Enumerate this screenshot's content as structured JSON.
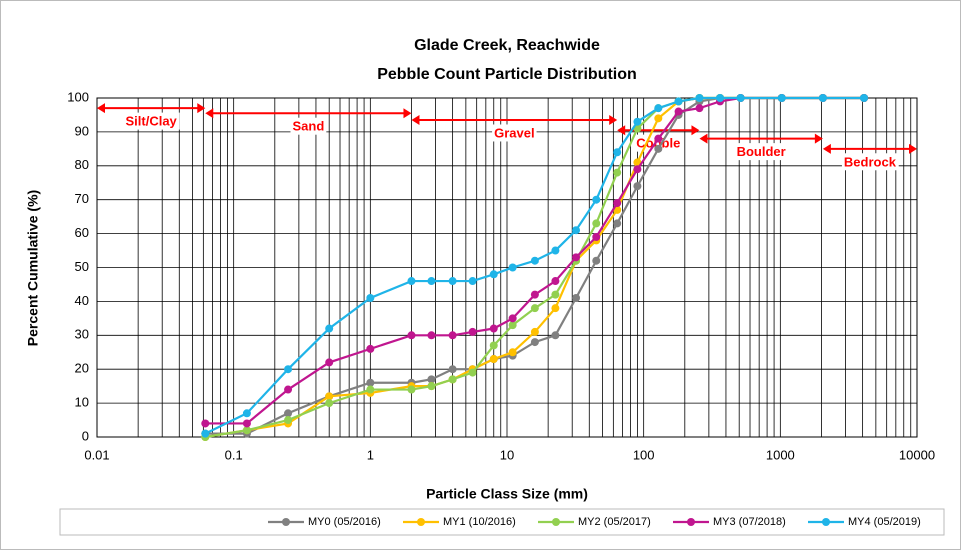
{
  "chart_data": {
    "type": "line",
    "title": "Glade Creek, Reachwide",
    "subtitle": "Pebble Count Particle Distribution",
    "xlabel": "Particle Class Size (mm)",
    "ylabel": "Percent Cumulative (%)",
    "x_log": true,
    "grid": true,
    "minor_grid": true,
    "x": [
      0.062,
      0.125,
      0.25,
      0.5,
      1,
      2,
      2.8,
      4,
      5.6,
      8,
      11,
      16,
      22.6,
      32,
      45,
      64,
      90,
      128,
      180,
      256,
      362,
      512,
      1024,
      2048,
      4096
    ],
    "series": [
      {
        "name": "MY0 (05/2016)",
        "color": "#808080",
        "values": [
          1,
          1,
          7,
          12,
          16,
          16,
          17,
          20,
          20,
          23,
          24,
          28,
          30,
          41,
          52,
          63,
          74,
          85,
          95,
          99,
          100,
          100,
          100,
          100,
          100
        ]
      },
      {
        "name": "MY1 (10/2016)",
        "color": "#ffc000",
        "values": [
          0,
          2,
          4,
          12,
          13,
          15,
          15,
          17,
          20,
          23,
          25,
          31,
          38,
          52,
          58,
          67,
          81,
          94,
          99,
          100,
          100,
          100,
          100,
          100,
          100
        ]
      },
      {
        "name": "MY2 (05/2017)",
        "color": "#92d050",
        "values": [
          0,
          2,
          5,
          10,
          14,
          14,
          15,
          17,
          19,
          27,
          33,
          38,
          42,
          52,
          63,
          78,
          91,
          97,
          99,
          100,
          100,
          100,
          100,
          100,
          100
        ]
      },
      {
        "name": "MY3 (07/2018)",
        "color": "#c0168f",
        "values": [
          4,
          4,
          14,
          22,
          26,
          30,
          30,
          30,
          31,
          32,
          35,
          42,
          46,
          53,
          59,
          69,
          79,
          88,
          96,
          97,
          99,
          100,
          100,
          100,
          100
        ]
      },
      {
        "name": "MY4 (05/2019)",
        "color": "#1fb4e8",
        "values": [
          1,
          7,
          20,
          32,
          41,
          46,
          46,
          46,
          46,
          48,
          50,
          52,
          55,
          61,
          70,
          84,
          93,
          97,
          99,
          100,
          100,
          100,
          100,
          100,
          100
        ]
      }
    ],
    "xlim": [
      0.01,
      10000
    ],
    "xticks": [
      0.01,
      0.1,
      1,
      10,
      100,
      1000,
      10000
    ],
    "ylim": [
      0,
      100
    ],
    "yticks": [
      0,
      10,
      20,
      30,
      40,
      50,
      60,
      70,
      80,
      90,
      100
    ],
    "annotation_color": "#ff0000",
    "annotations": [
      {
        "text": "Silt/Clay",
        "x": [
          0.01,
          0.062
        ],
        "y": 97
      },
      {
        "text": "Sand",
        "x": [
          0.062,
          2
        ],
        "y": 95.5
      },
      {
        "text": "Gravel",
        "x": [
          2,
          64
        ],
        "y": 93.5
      },
      {
        "text": "Cobble",
        "x": [
          64,
          256
        ],
        "y": 90.5
      },
      {
        "text": "Boulder",
        "x": [
          256,
          2048
        ],
        "y": 88
      },
      {
        "text": "Bedrock",
        "x": [
          2048,
          10000
        ],
        "y": 85
      }
    ]
  }
}
